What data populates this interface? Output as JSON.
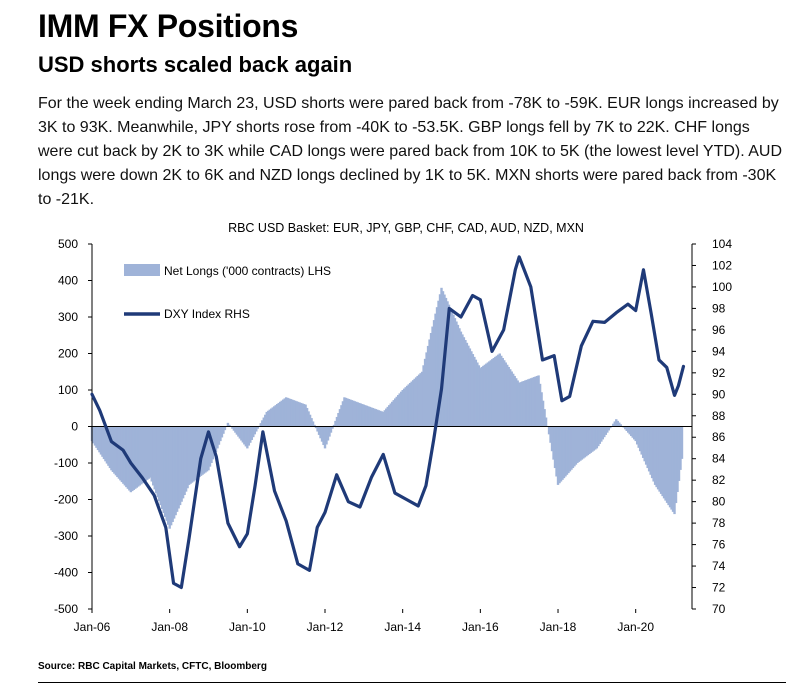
{
  "header": {
    "title": "IMM FX Positions",
    "subtitle": "USD shorts scaled back again",
    "body": "For the week ending March 23, USD shorts were pared back from -78K to -59K. EUR longs increased by 3K to 93K. Meanwhile, JPY shorts rose from -40K to -53.5K. GBP longs fell by 7K to 22K. CHF longs were cut back by 2K to 3K while CAD longs were pared back from 10K to 5K (the lowest level YTD). AUD longs were down 2K to 6K and NZD longs declined by 1K to 5K. MXN shorts were pared back from -30K to -21K."
  },
  "footer": {
    "source": "Source: RBC Capital Markets, CFTC, Bloomberg"
  },
  "colors": {
    "bars": "#9fb3d8",
    "line": "#1f3a78"
  },
  "chart_data": {
    "type": "bar",
    "title": "RBC USD Basket: EUR, JPY, GBP, CHF, CAD, AUD, NZD, MXN",
    "x_tick_labels": [
      "Jan-06",
      "Jan-08",
      "Jan-10",
      "Jan-12",
      "Jan-14",
      "Jan-16",
      "Jan-18",
      "Jan-20"
    ],
    "y_left": {
      "ylim": [
        -500,
        500
      ],
      "ticks": [
        500,
        400,
        300,
        200,
        100,
        0,
        -100,
        -200,
        -300,
        -400,
        -500
      ]
    },
    "y_right": {
      "ylim": [
        70,
        104
      ],
      "ticks": [
        104,
        102,
        100,
        98,
        96,
        94,
        92,
        90,
        88,
        86,
        84,
        82,
        80,
        78,
        76,
        74,
        72,
        70
      ]
    },
    "legend": {
      "placement": "top-left"
    },
    "series": [
      {
        "name": "Net Longs ('000 contracts) LHS",
        "kind": "bar",
        "axis": "left",
        "x": [
          2006.0,
          2006.5,
          2007.0,
          2007.5,
          2008.0,
          2008.5,
          2009.0,
          2009.5,
          2010.0,
          2010.5,
          2011.0,
          2011.5,
          2012.0,
          2012.5,
          2013.0,
          2013.5,
          2014.0,
          2014.5,
          2015.0,
          2015.5,
          2016.0,
          2016.5,
          2017.0,
          2017.5,
          2018.0,
          2018.5,
          2019.0,
          2019.5,
          2020.0,
          2020.5,
          2021.0,
          2021.23
        ],
        "y": [
          -40,
          -120,
          -180,
          -140,
          -280,
          -160,
          -120,
          10,
          -60,
          40,
          80,
          60,
          -60,
          80,
          60,
          40,
          100,
          150,
          380,
          260,
          160,
          200,
          120,
          140,
          -160,
          -100,
          -60,
          20,
          -40,
          -160,
          -240,
          -59
        ]
      },
      {
        "name": "DXY Index RHS",
        "kind": "line",
        "axis": "right",
        "x": [
          2006.0,
          2006.2,
          2006.5,
          2006.8,
          2007.0,
          2007.3,
          2007.6,
          2007.9,
          2008.1,
          2008.3,
          2008.5,
          2008.8,
          2009.0,
          2009.2,
          2009.5,
          2009.8,
          2010.0,
          2010.2,
          2010.4,
          2010.7,
          2011.0,
          2011.3,
          2011.6,
          2011.8,
          2012.0,
          2012.3,
          2012.6,
          2012.9,
          2013.2,
          2013.5,
          2013.8,
          2014.1,
          2014.4,
          2014.6,
          2014.8,
          2015.0,
          2015.2,
          2015.5,
          2015.8,
          2016.0,
          2016.3,
          2016.6,
          2016.9,
          2017.0,
          2017.3,
          2017.6,
          2017.9,
          2018.1,
          2018.3,
          2018.6,
          2018.9,
          2019.2,
          2019.5,
          2019.8,
          2020.0,
          2020.2,
          2020.4,
          2020.6,
          2020.8,
          2021.0,
          2021.1,
          2021.23
        ],
        "y": [
          90.0,
          88.5,
          85.6,
          84.8,
          83.6,
          82.2,
          80.6,
          77.6,
          72.4,
          72.0,
          76.6,
          84.0,
          86.5,
          84.2,
          78.0,
          75.8,
          77.0,
          81.5,
          86.5,
          81.0,
          78.2,
          74.2,
          73.6,
          77.6,
          79.0,
          82.5,
          80.0,
          79.5,
          82.3,
          84.4,
          80.8,
          80.2,
          79.6,
          81.5,
          85.8,
          90.5,
          98.0,
          97.2,
          99.2,
          98.8,
          94.0,
          96.0,
          101.6,
          102.8,
          100.0,
          93.2,
          93.6,
          89.4,
          89.8,
          94.5,
          96.8,
          96.7,
          97.6,
          98.4,
          97.8,
          101.6,
          97.5,
          93.2,
          92.5,
          89.9,
          90.8,
          92.6
        ]
      }
    ]
  }
}
